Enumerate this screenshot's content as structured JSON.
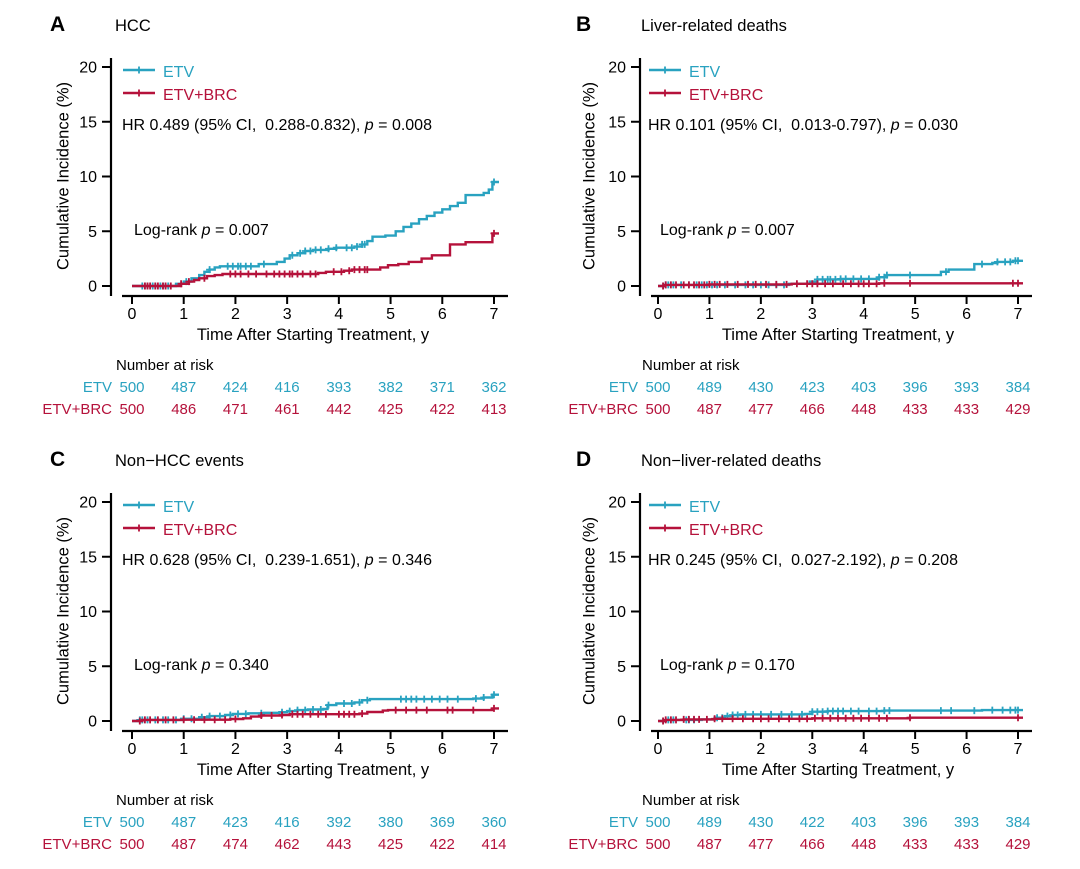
{
  "figure": {
    "y_label": "Cumulative Incidence (%)",
    "x_label": "Time After Starting Treatment, y",
    "risk_header": "Number at risk",
    "legend": [
      {
        "key": "etv",
        "label": "ETV"
      },
      {
        "key": "etv_brc",
        "label": "ETV+BRC"
      }
    ],
    "colors": {
      "etv": "#29a2c0",
      "etv_brc": "#b5123b",
      "axis": "#000000"
    }
  },
  "chart_data": [
    {
      "type": "line",
      "panel": "A",
      "title": "HCC",
      "hr_prefix": "HR 0.489 (95% CI,  0.288-0.832), ",
      "hr_p": "p",
      "hr_suffix": " = 0.008",
      "lr_prefix": "Log-rank ",
      "lr_p": "p",
      "lr_suffix": " = 0.007",
      "xlim": [
        0,
        7
      ],
      "ylim": [
        0,
        20
      ],
      "x_ticks": [
        0,
        1,
        2,
        3,
        4,
        5,
        6,
        7
      ],
      "y_ticks": [
        0,
        5,
        10,
        15,
        20
      ],
      "series": [
        {
          "name": "ETV",
          "color_key": "etv",
          "steps": [
            [
              0,
              0
            ],
            [
              0.85,
              0.2
            ],
            [
              1.0,
              0.4
            ],
            [
              1.15,
              0.7
            ],
            [
              1.3,
              1.0
            ],
            [
              1.4,
              1.3
            ],
            [
              1.5,
              1.5
            ],
            [
              1.6,
              1.7
            ],
            [
              1.7,
              1.8
            ],
            [
              2.45,
              2.0
            ],
            [
              2.8,
              2.2
            ],
            [
              2.95,
              2.5
            ],
            [
              3.05,
              2.8
            ],
            [
              3.2,
              3.0
            ],
            [
              3.35,
              3.2
            ],
            [
              3.5,
              3.3
            ],
            [
              3.8,
              3.4
            ],
            [
              3.95,
              3.5
            ],
            [
              4.3,
              3.6
            ],
            [
              4.45,
              3.8
            ],
            [
              4.55,
              4.1
            ],
            [
              4.65,
              4.5
            ],
            [
              4.9,
              4.6
            ],
            [
              5.1,
              5.0
            ],
            [
              5.25,
              5.4
            ],
            [
              5.4,
              5.7
            ],
            [
              5.55,
              6.1
            ],
            [
              5.7,
              6.4
            ],
            [
              5.85,
              6.7
            ],
            [
              6.0,
              7.0
            ],
            [
              6.15,
              7.3
            ],
            [
              6.3,
              7.6
            ],
            [
              6.45,
              8.3
            ],
            [
              6.8,
              8.5
            ],
            [
              6.9,
              8.8
            ],
            [
              6.97,
              9.5
            ]
          ],
          "censors": [
            0.2,
            0.25,
            0.3,
            0.4,
            0.45,
            0.55,
            0.6,
            0.65,
            0.7,
            1.05,
            1.5,
            1.85,
            1.95,
            2.05,
            2.1,
            2.2,
            2.3,
            2.55,
            3.1,
            3.25,
            3.35,
            3.45,
            3.55,
            3.65,
            3.8,
            3.95,
            4.15,
            4.25,
            4.35,
            4.45,
            4.5,
            7.0
          ]
        },
        {
          "name": "ETV+BRC",
          "color_key": "etv_brc",
          "steps": [
            [
              0,
              0
            ],
            [
              0.95,
              0.2
            ],
            [
              1.1,
              0.4
            ],
            [
              1.2,
              0.55
            ],
            [
              1.3,
              0.7
            ],
            [
              1.45,
              0.9
            ],
            [
              1.6,
              1.0
            ],
            [
              1.75,
              1.1
            ],
            [
              3.6,
              1.2
            ],
            [
              3.75,
              1.3
            ],
            [
              4.1,
              1.4
            ],
            [
              4.25,
              1.5
            ],
            [
              4.8,
              1.7
            ],
            [
              4.95,
              1.9
            ],
            [
              5.15,
              2.0
            ],
            [
              5.35,
              2.2
            ],
            [
              5.6,
              2.5
            ],
            [
              5.8,
              2.8
            ],
            [
              6.15,
              3.8
            ],
            [
              6.45,
              4.0
            ],
            [
              6.97,
              4.8
            ]
          ],
          "censors": [
            0.25,
            0.3,
            0.35,
            0.45,
            0.5,
            0.6,
            0.65,
            0.75,
            0.95,
            1.1,
            1.4,
            1.9,
            2.0,
            2.1,
            2.25,
            2.4,
            2.6,
            2.75,
            2.85,
            2.95,
            3.05,
            3.1,
            3.2,
            3.3,
            3.45,
            3.55,
            3.9,
            4.05,
            4.2,
            4.3,
            4.4,
            4.5,
            4.55,
            7.0
          ]
        }
      ],
      "risk_table": [
        {
          "label": "ETV",
          "values": [
            500,
            487,
            424,
            416,
            393,
            382,
            371,
            362
          ]
        },
        {
          "label": "ETV+BRC",
          "values": [
            500,
            486,
            471,
            461,
            442,
            425,
            422,
            413
          ]
        }
      ]
    },
    {
      "type": "line",
      "panel": "B",
      "title": "Liver-related deaths",
      "hr_prefix": "HR 0.101 (95% CI,  0.013-0.797), ",
      "hr_p": "p",
      "hr_suffix": " = 0.030",
      "lr_prefix": "Log-rank ",
      "lr_p": "p",
      "lr_suffix": " = 0.007",
      "xlim": [
        0,
        7
      ],
      "ylim": [
        0,
        20
      ],
      "x_ticks": [
        0,
        1,
        2,
        3,
        4,
        5,
        6,
        7
      ],
      "y_ticks": [
        0,
        5,
        10,
        15,
        20
      ],
      "series": [
        {
          "name": "ETV",
          "color_key": "etv",
          "steps": [
            [
              0,
              0
            ],
            [
              0.12,
              0.1
            ],
            [
              2.55,
              0.2
            ],
            [
              2.95,
              0.4
            ],
            [
              3.1,
              0.6
            ],
            [
              3.55,
              0.65
            ],
            [
              4.3,
              0.8
            ],
            [
              4.45,
              1.0
            ],
            [
              5.5,
              1.3
            ],
            [
              5.65,
              1.5
            ],
            [
              6.15,
              2.0
            ],
            [
              6.5,
              2.1
            ],
            [
              6.6,
              2.2
            ],
            [
              6.9,
              2.3
            ]
          ],
          "censors": [
            0.1,
            0.15,
            0.2,
            0.3,
            0.45,
            0.6,
            0.75,
            0.85,
            0.95,
            1.05,
            1.15,
            1.3,
            1.5,
            1.7,
            1.85,
            2.0,
            2.15,
            2.3,
            2.45,
            3.1,
            3.2,
            3.3,
            3.35,
            3.45,
            3.55,
            3.65,
            3.8,
            3.95,
            4.1,
            4.3,
            4.4,
            4.45,
            4.9,
            5.6,
            6.3,
            6.6,
            6.75,
            6.85,
            6.95,
            7.0
          ]
        },
        {
          "name": "ETV+BRC",
          "color_key": "etv_brc",
          "steps": [
            [
              0,
              0
            ],
            [
              0.12,
              0.1
            ],
            [
              1.0,
              0.15
            ],
            [
              2.6,
              0.2
            ],
            [
              4.3,
              0.25
            ]
          ],
          "censors": [
            0.1,
            0.15,
            0.25,
            0.35,
            0.5,
            0.6,
            0.7,
            0.8,
            0.9,
            1.0,
            1.1,
            1.2,
            1.35,
            1.55,
            1.75,
            1.9,
            2.1,
            2.3,
            2.5,
            2.7,
            2.9,
            3.0,
            3.1,
            3.25,
            3.4,
            3.6,
            3.75,
            3.9,
            4.0,
            4.1,
            4.25,
            4.4,
            4.9,
            6.9,
            7.0
          ]
        }
      ],
      "risk_table": [
        {
          "label": "ETV",
          "values": [
            500,
            489,
            430,
            423,
            403,
            396,
            393,
            384
          ]
        },
        {
          "label": "ETV+BRC",
          "values": [
            500,
            487,
            477,
            466,
            448,
            433,
            433,
            429
          ]
        }
      ]
    },
    {
      "type": "line",
      "panel": "C",
      "title": "Non−HCC events",
      "hr_prefix": "HR 0.628 (95% CI,  0.239-1.651), ",
      "hr_p": "p",
      "hr_suffix": " = 0.346",
      "lr_prefix": "Log-rank ",
      "lr_p": "p",
      "lr_suffix": " = 0.340",
      "xlim": [
        0,
        7
      ],
      "ylim": [
        0,
        20
      ],
      "x_ticks": [
        0,
        1,
        2,
        3,
        4,
        5,
        6,
        7
      ],
      "y_ticks": [
        0,
        5,
        10,
        15,
        20
      ],
      "series": [
        {
          "name": "ETV",
          "color_key": "etv",
          "steps": [
            [
              0,
              0
            ],
            [
              0.15,
              0.1
            ],
            [
              0.95,
              0.2
            ],
            [
              1.3,
              0.35
            ],
            [
              1.5,
              0.45
            ],
            [
              1.8,
              0.55
            ],
            [
              1.95,
              0.65
            ],
            [
              2.25,
              0.7
            ],
            [
              2.55,
              0.75
            ],
            [
              2.85,
              0.8
            ],
            [
              3.0,
              0.9
            ],
            [
              3.2,
              1.0
            ],
            [
              3.4,
              1.05
            ],
            [
              3.7,
              1.1
            ],
            [
              3.78,
              1.45
            ],
            [
              3.95,
              1.6
            ],
            [
              4.3,
              1.7
            ],
            [
              4.45,
              1.9
            ],
            [
              4.6,
              2.0
            ],
            [
              6.6,
              2.05
            ],
            [
              6.8,
              2.15
            ],
            [
              6.97,
              2.4
            ]
          ],
          "censors": [
            0.15,
            0.2,
            0.3,
            0.45,
            0.6,
            0.7,
            0.85,
            1.0,
            1.15,
            1.35,
            1.5,
            1.7,
            1.9,
            2.05,
            2.2,
            2.5,
            2.9,
            3.05,
            3.2,
            3.35,
            3.5,
            3.65,
            3.8,
            4.1,
            4.25,
            4.4,
            4.55,
            5.2,
            5.3,
            5.4,
            5.5,
            5.65,
            5.8,
            5.95,
            6.1,
            6.3,
            6.65,
            6.8,
            7.0
          ]
        },
        {
          "name": "ETV+BRC",
          "color_key": "etv_brc",
          "steps": [
            [
              0,
              0
            ],
            [
              0.2,
              0.1
            ],
            [
              1.0,
              0.12
            ],
            [
              1.9,
              0.18
            ],
            [
              2.15,
              0.25
            ],
            [
              2.3,
              0.4
            ],
            [
              2.5,
              0.5
            ],
            [
              2.9,
              0.55
            ],
            [
              3.05,
              0.62
            ],
            [
              4.4,
              0.68
            ],
            [
              4.55,
              0.82
            ],
            [
              4.85,
              0.95
            ],
            [
              4.95,
              1.0
            ],
            [
              6.97,
              1.15
            ]
          ],
          "censors": [
            0.15,
            0.25,
            0.35,
            0.5,
            0.65,
            0.8,
            1.0,
            1.2,
            1.4,
            1.6,
            1.8,
            2.0,
            2.5,
            2.7,
            2.9,
            3.1,
            3.2,
            3.3,
            3.45,
            3.6,
            3.75,
            4.0,
            4.1,
            4.2,
            4.3,
            4.45,
            5.1,
            5.3,
            5.5,
            5.7,
            6.1,
            6.2,
            6.6,
            7.0
          ]
        }
      ],
      "risk_table": [
        {
          "label": "ETV",
          "values": [
            500,
            487,
            423,
            416,
            392,
            380,
            369,
            360
          ]
        },
        {
          "label": "ETV+BRC",
          "values": [
            500,
            487,
            474,
            462,
            443,
            425,
            422,
            414
          ]
        }
      ]
    },
    {
      "type": "line",
      "panel": "D",
      "title": "Non−liver-related deaths",
      "hr_prefix": "HR 0.245 (95% CI,  0.027-2.192), ",
      "hr_p": "p",
      "hr_suffix": " = 0.208",
      "lr_prefix": "Log-rank ",
      "lr_p": "p",
      "lr_suffix": " = 0.170",
      "xlim": [
        0,
        7
      ],
      "ylim": [
        0,
        20
      ],
      "x_ticks": [
        0,
        1,
        2,
        3,
        4,
        5,
        6,
        7
      ],
      "y_ticks": [
        0,
        5,
        10,
        15,
        20
      ],
      "series": [
        {
          "name": "ETV",
          "color_key": "etv",
          "steps": [
            [
              0,
              0
            ],
            [
              0.15,
              0.1
            ],
            [
              0.85,
              0.15
            ],
            [
              1.1,
              0.3
            ],
            [
              1.3,
              0.45
            ],
            [
              1.45,
              0.55
            ],
            [
              1.6,
              0.6
            ],
            [
              2.85,
              0.65
            ],
            [
              3.0,
              0.85
            ],
            [
              3.3,
              0.9
            ],
            [
              4.4,
              0.95
            ],
            [
              6.3,
              1.0
            ]
          ],
          "censors": [
            0.1,
            0.2,
            0.3,
            0.55,
            0.6,
            0.7,
            1.15,
            1.25,
            1.35,
            1.45,
            1.55,
            1.7,
            1.85,
            2.0,
            2.2,
            2.4,
            2.6,
            2.8,
            3.0,
            3.1,
            3.2,
            3.3,
            3.4,
            3.5,
            3.6,
            3.75,
            3.9,
            4.1,
            4.25,
            4.4,
            4.5,
            5.5,
            5.7,
            6.15,
            6.5,
            6.7,
            6.85,
            6.95,
            7.0
          ]
        },
        {
          "name": "ETV+BRC",
          "color_key": "etv_brc",
          "steps": [
            [
              0,
              0
            ],
            [
              0.15,
              0.1
            ],
            [
              0.5,
              0.15
            ],
            [
              1.1,
              0.2
            ],
            [
              3.0,
              0.25
            ],
            [
              4.9,
              0.3
            ]
          ],
          "censors": [
            0.1,
            0.15,
            0.25,
            0.35,
            0.5,
            0.6,
            0.7,
            0.8,
            0.95,
            1.1,
            1.25,
            1.45,
            1.65,
            1.85,
            2.0,
            2.15,
            2.35,
            2.55,
            2.75,
            2.9,
            3.05,
            3.2,
            3.35,
            3.5,
            3.65,
            3.8,
            3.95,
            4.1,
            4.3,
            4.45,
            4.9,
            7.0
          ]
        }
      ],
      "risk_table": [
        {
          "label": "ETV",
          "values": [
            500,
            489,
            430,
            422,
            403,
            396,
            393,
            384
          ]
        },
        {
          "label": "ETV+BRC",
          "values": [
            500,
            487,
            477,
            466,
            448,
            433,
            433,
            429
          ]
        }
      ]
    }
  ]
}
